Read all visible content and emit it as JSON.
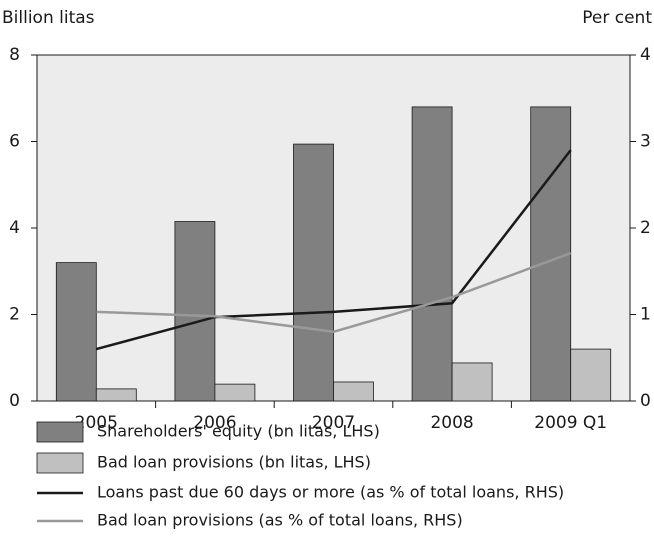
{
  "chart_data": {
    "type": "bar",
    "y_label": "Billion litas",
    "y2_label": "Per cent",
    "categories": [
      "2005",
      "2006",
      "2007",
      "2008",
      "2009 Q1"
    ],
    "series": [
      {
        "name": "Shareholders' equity (bn litas, LHS)",
        "type": "bar",
        "color": "#808080",
        "values": [
          3.2,
          4.15,
          5.94,
          6.8,
          6.8
        ]
      },
      {
        "name": "Bad loan provisions (bn litas, LHS)",
        "type": "bar",
        "color": "#c0c0c0",
        "values": [
          0.28,
          0.39,
          0.44,
          0.88,
          1.2
        ]
      },
      {
        "name": "Loans past due 60 days or more (as % of total loans, RHS)",
        "type": "line",
        "axis": "y2",
        "color": "#1a1a1a",
        "values": [
          0.6,
          0.97,
          1.03,
          1.13,
          2.9
        ]
      },
      {
        "name": "Bad loan provisions (as % of total loans, RHS)",
        "type": "line",
        "axis": "y2",
        "color": "#999999",
        "values": [
          1.03,
          0.98,
          0.8,
          1.2,
          1.71
        ]
      }
    ],
    "ylim": [
      0,
      8
    ],
    "yticks": [
      0,
      2,
      4,
      6,
      8
    ],
    "y2lim": [
      0,
      4
    ],
    "y2ticks": [
      0,
      1,
      2,
      3,
      4
    ]
  }
}
